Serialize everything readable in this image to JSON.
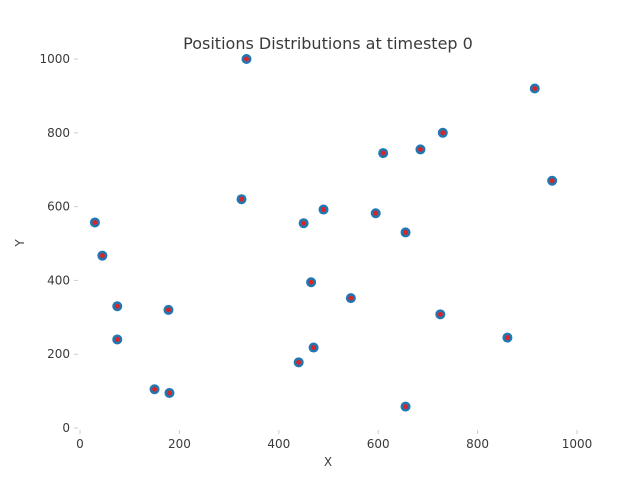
{
  "chart_data": {
    "type": "scatter",
    "title": "Positions Distributions at timestep 0",
    "xlabel": "X",
    "ylabel": "Y",
    "xlim": [
      0,
      1000
    ],
    "ylim": [
      0,
      1000
    ],
    "xticks": [
      0,
      200,
      400,
      600,
      800,
      1000
    ],
    "yticks": [
      0,
      200,
      400,
      600,
      800,
      1000
    ],
    "grid": false,
    "colors": {
      "marker_fill": "#1f77b4",
      "marker_center": "#d62728",
      "text": "#3a3a3a"
    },
    "series": [
      {
        "points": [
          [
            335,
            1000
          ],
          [
            915,
            920
          ],
          [
            730,
            800
          ],
          [
            685,
            755
          ],
          [
            610,
            745
          ],
          [
            950,
            670
          ],
          [
            325,
            620
          ],
          [
            490,
            592
          ],
          [
            595,
            582
          ],
          [
            30,
            557
          ],
          [
            450,
            555
          ],
          [
            655,
            530
          ],
          [
            45,
            467
          ],
          [
            465,
            395
          ],
          [
            545,
            352
          ],
          [
            75,
            330
          ],
          [
            178,
            320
          ],
          [
            725,
            308
          ],
          [
            860,
            245
          ],
          [
            75,
            240
          ],
          [
            470,
            218
          ],
          [
            440,
            178
          ],
          [
            150,
            105
          ],
          [
            180,
            95
          ],
          [
            655,
            58
          ]
        ]
      }
    ]
  }
}
